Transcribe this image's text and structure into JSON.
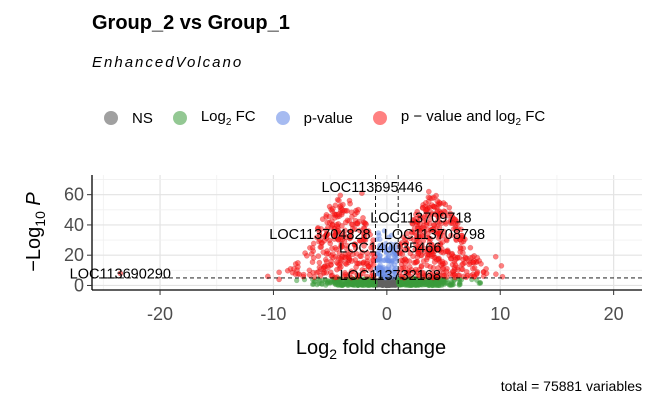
{
  "title": "Group_2 vs Group_1",
  "subtitle": "EnhancedVolcano",
  "caption": "total = 75881 variables",
  "legend": [
    {
      "label": "NS",
      "color": "#808080"
    },
    {
      "label": "Log",
      "sub": "2",
      "suffix": " FC",
      "color": "#3a9a3a"
    },
    {
      "label": "p-value",
      "color": "#6b8ee8"
    },
    {
      "label": "p − value and log",
      "sub": "2",
      "suffix": " FC",
      "color": "#ff1a1a"
    }
  ],
  "chart_data": {
    "type": "scatter",
    "title": "Group_2 vs Group_1",
    "subtitle": "EnhancedVolcano",
    "xlabel": "Log2 fold change",
    "ylabel": "−Log10 P",
    "xlim": [
      -26,
      22.5
    ],
    "ylim": [
      -3,
      73
    ],
    "x_ticks": [
      -20,
      -10,
      0,
      10,
      20
    ],
    "y_ticks": [
      0,
      20,
      40,
      60
    ],
    "fc_cutoff": 1,
    "p_cutoff_log10": 5,
    "grid": true,
    "legend_position": "top",
    "caption": "total = 75881 variables",
    "labels": [
      {
        "text": "LOC113695446",
        "x": -1.3,
        "y": 65
      },
      {
        "text": "LOC113709718",
        "x": 3.0,
        "y": 45
      },
      {
        "text": "LOC113708798",
        "x": 4.2,
        "y": 34
      },
      {
        "text": "LOC113704828",
        "x": -5.9,
        "y": 34
      },
      {
        "text": "LOC140035466",
        "x": 0.3,
        "y": 25
      },
      {
        "text": "LOC113690290",
        "x": -23.5,
        "y": 8
      },
      {
        "text": "LOC113732168",
        "x": 0.3,
        "y": 7
      }
    ]
  }
}
